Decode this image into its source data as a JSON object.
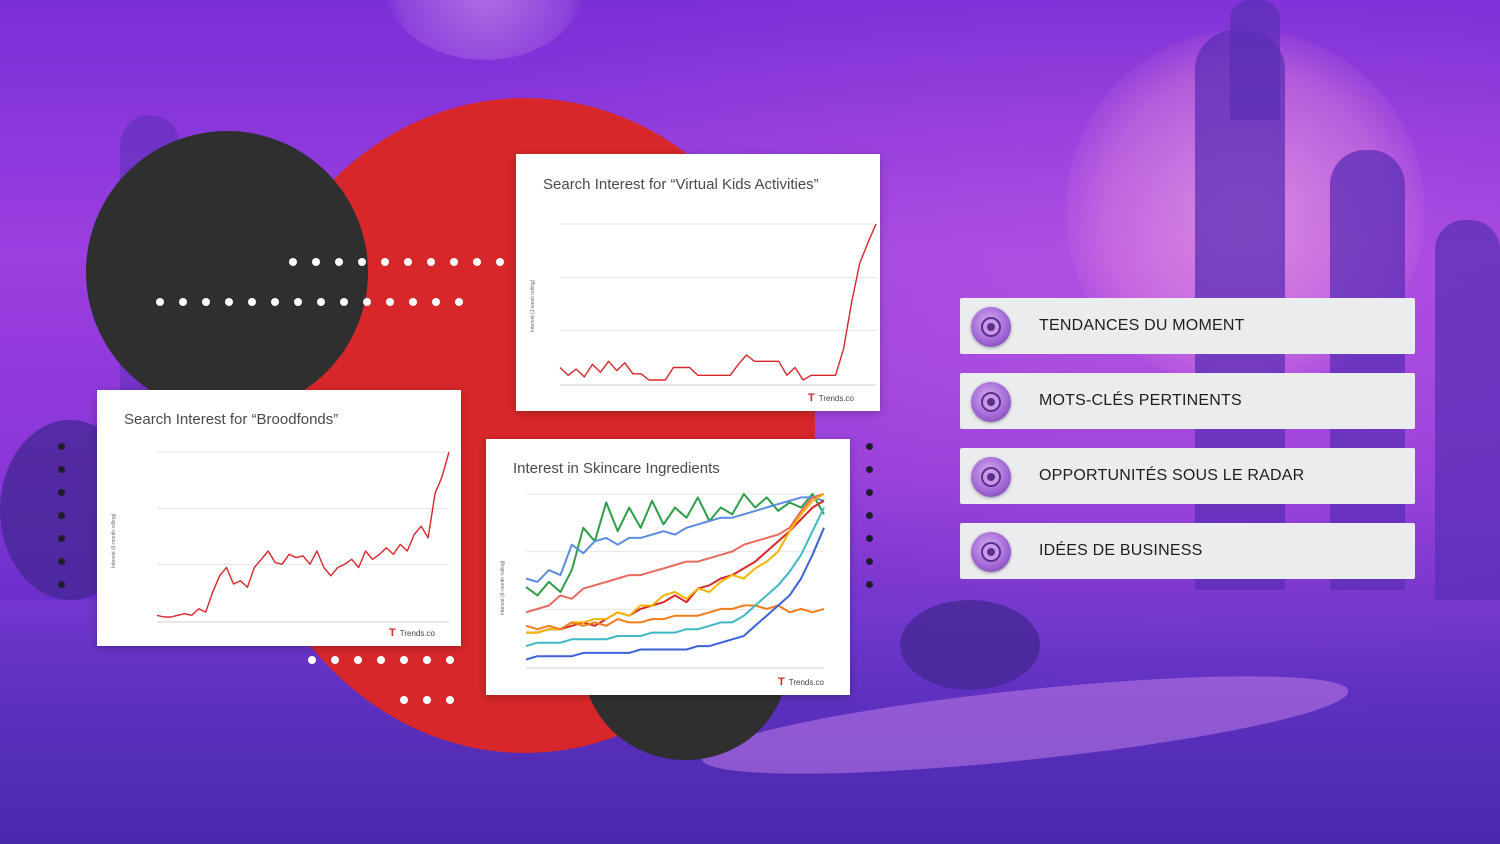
{
  "charts": [
    {
      "title": "Search Interest for “Virtual Kids Activities”",
      "ylabel": "Interest (1-week rolling)",
      "brand": "Trends.co",
      "chart_data": {
        "type": "line",
        "title": "Search Interest for “Virtual Kids Activities”",
        "ylabel": "Interest (1-week rolling)",
        "ylim": [
          0,
          100
        ],
        "series": [
          {
            "color": "#d7272a",
            "values": [
              8,
              3,
              7,
              2,
              10,
              5,
              12,
              6,
              11,
              4,
              4,
              0,
              0,
              0,
              8,
              8,
              8,
              3,
              3,
              3,
              3,
              3,
              10,
              16,
              12,
              12,
              12,
              12,
              3,
              8,
              0,
              3,
              3,
              3,
              3,
              20,
              50,
              75,
              88,
              100
            ]
          }
        ]
      }
    },
    {
      "title": "Search Interest for “Broodfonds”",
      "ylabel": "Interest (6-month rolling)",
      "brand": "Trends.co",
      "chart_data": {
        "type": "line",
        "title": "Search Interest for “Broodfonds”",
        "ylabel": "Interest (6-month rolling)",
        "ylim": [
          0,
          100
        ],
        "series": [
          {
            "color": "#d7272a",
            "values": [
              1,
              0,
              0,
              1,
              2,
              1,
              5,
              3,
              15,
              25,
              30,
              20,
              22,
              18,
              30,
              35,
              40,
              33,
              32,
              38,
              36,
              37,
              32,
              40,
              30,
              25,
              30,
              32,
              35,
              30,
              40,
              35,
              38,
              42,
              38,
              44,
              40,
              50,
              55,
              48,
              75,
              85,
              100
            ]
          }
        ]
      }
    },
    {
      "title": "Interest in Skincare Ingredients",
      "ylabel": "Interest (6-month rolling)",
      "brand": "Trends.co",
      "chart_data": {
        "type": "line",
        "title": "Interest in Skincare Ingredients",
        "ylabel": "Interest (6-month rolling)",
        "ylim": [
          0,
          100
        ],
        "series": [
          {
            "color": "#2e9e4a",
            "values": [
              45,
              40,
              48,
              42,
              55,
              80,
              72,
              95,
              78,
              92,
              80,
              96,
              82,
              92,
              86,
              98,
              84,
              92,
              88,
              100,
              92,
              98,
              90,
              95,
              92,
              100,
              88
            ]
          },
          {
            "color": "#5a8de0",
            "values": [
              50,
              48,
              55,
              52,
              70,
              65,
              72,
              74,
              70,
              74,
              74,
              76,
              78,
              76,
              80,
              82,
              84,
              86,
              86,
              88,
              90,
              92,
              94,
              96,
              98,
              98,
              96
            ]
          },
          {
            "color": "#e86a5c",
            "values": [
              30,
              32,
              34,
              40,
              38,
              44,
              46,
              48,
              50,
              52,
              52,
              54,
              56,
              58,
              60,
              60,
              62,
              64,
              66,
              70,
              72,
              74,
              76,
              80,
              90,
              98,
              100
            ]
          },
          {
            "color": "#d7272a",
            "values": [
              18,
              18,
              20,
              20,
              22,
              24,
              22,
              26,
              30,
              28,
              32,
              34,
              36,
              40,
              36,
              44,
              46,
              50,
              52,
              56,
              60,
              66,
              72,
              78,
              85,
              92,
              96
            ]
          },
          {
            "color": "#f5b400",
            "values": [
              18,
              18,
              20,
              20,
              24,
              24,
              26,
              26,
              30,
              28,
              34,
              34,
              40,
              42,
              38,
              44,
              42,
              48,
              52,
              50,
              56,
              60,
              66,
              78,
              88,
              96,
              100
            ]
          },
          {
            "color": "#f07c1a",
            "values": [
              22,
              20,
              22,
              20,
              24,
              22,
              24,
              22,
              26,
              24,
              24,
              26,
              26,
              28,
              28,
              28,
              30,
              32,
              32,
              34,
              34,
              32,
              34,
              30,
              32,
              30,
              32
            ]
          },
          {
            "color": "#3fb8c4",
            "values": [
              10,
              12,
              12,
              12,
              14,
              14,
              14,
              14,
              16,
              16,
              16,
              18,
              18,
              18,
              20,
              20,
              22,
              24,
              24,
              28,
              34,
              40,
              46,
              54,
              64,
              78,
              92
            ]
          },
          {
            "color": "#3b62d8",
            "values": [
              2,
              4,
              4,
              4,
              4,
              6,
              6,
              6,
              6,
              6,
              8,
              8,
              8,
              8,
              8,
              10,
              10,
              12,
              14,
              16,
              22,
              28,
              34,
              40,
              50,
              64,
              80
            ]
          }
        ]
      }
    }
  ],
  "menu": {
    "items": [
      {
        "label": "TENDANCES DU MOMENT"
      },
      {
        "label": "MOTS-CLÉS PERTINENTS"
      },
      {
        "label": "OPPORTUNITÉS SOUS LE RADAR"
      },
      {
        "label": "IDÉES DE BUSINESS"
      }
    ],
    "icon": "target-icon"
  },
  "colors": {
    "accent_red": "#d7272a",
    "dark_circle": "#2f2f2f",
    "menu_bg": "#ebecee",
    "icon_purple": "#a46ad8"
  }
}
